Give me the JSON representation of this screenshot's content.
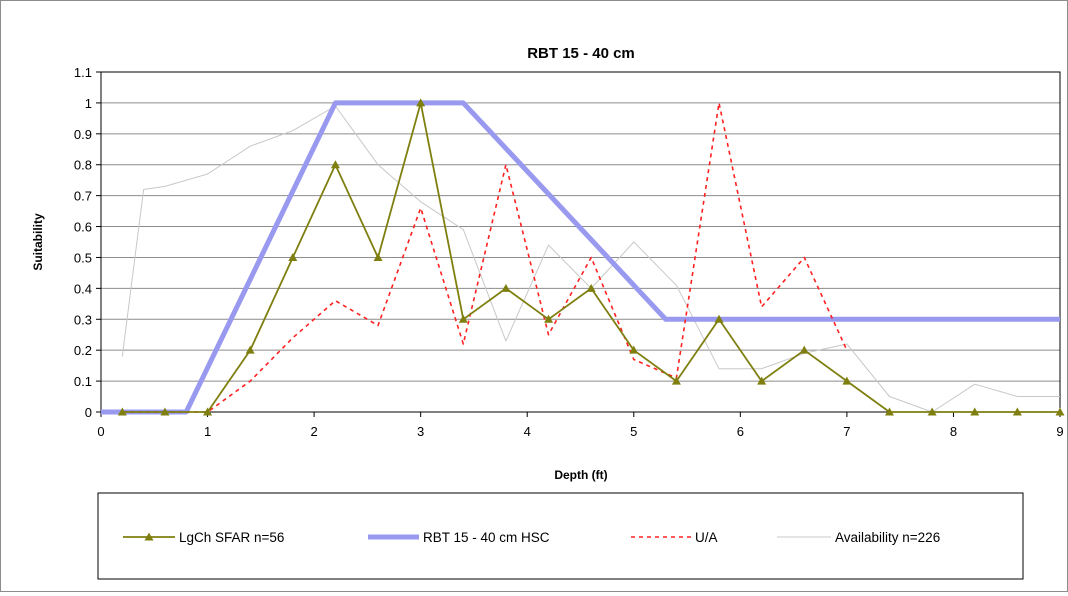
{
  "chart_data": {
    "type": "line",
    "title": "RBT 15 - 40 cm",
    "xlabel": "Depth (ft)",
    "ylabel": "Suitability",
    "xlim": [
      0,
      9
    ],
    "ylim": [
      0,
      1.1
    ],
    "xticks": [
      "0",
      "1",
      "2",
      "3",
      "4",
      "5",
      "6",
      "7",
      "8",
      "9"
    ],
    "yticks": [
      "0",
      "0.1",
      "0.2",
      "0.3",
      "0.4",
      "0.5",
      "0.6",
      "0.7",
      "0.8",
      "0.9",
      "1",
      "1.1"
    ],
    "grid": true,
    "legend_position": "bottom",
    "series": [
      {
        "name": "LgCh SFAR n=56",
        "color": "#7f7f10",
        "marker": "triangle",
        "style": "solid",
        "x": [
          0.2,
          0.6,
          1.0,
          1.4,
          1.8,
          2.2,
          2.6,
          3.0,
          3.4,
          3.8,
          4.2,
          4.6,
          5.0,
          5.4,
          5.8,
          6.2,
          6.6,
          7.0,
          7.4,
          7.8,
          8.2,
          8.6,
          9.0
        ],
        "values": [
          0,
          0,
          0,
          0.2,
          0.5,
          0.8,
          0.5,
          1.0,
          0.3,
          0.4,
          0.3,
          0.4,
          0.2,
          0.1,
          0.3,
          0.1,
          0.2,
          0.1,
          0,
          0,
          0,
          0,
          0
        ]
      },
      {
        "name": "RBT 15 - 40 cm HSC",
        "color": "#9999f0",
        "marker": "none",
        "style": "thick",
        "x": [
          0,
          0.8,
          2.2,
          3.4,
          5.3,
          9.0
        ],
        "values": [
          0,
          0,
          1.0,
          1.0,
          0.3,
          0.3
        ]
      },
      {
        "name": "U/A",
        "color": "#ff2020",
        "marker": "none",
        "style": "dashed",
        "x": [
          0.2,
          0.6,
          1.0,
          1.4,
          1.8,
          2.2,
          2.6,
          3.0,
          3.4,
          3.8,
          4.2,
          4.6,
          5.0,
          5.4,
          5.8,
          6.2,
          6.6,
          7.0
        ],
        "values": [
          0,
          0,
          0,
          0.1,
          0.24,
          0.36,
          0.28,
          0.66,
          0.22,
          0.8,
          0.25,
          0.5,
          0.17,
          0.11,
          1.0,
          0.34,
          0.5,
          0.2
        ]
      },
      {
        "name": "Availability  n=226",
        "color": "#c8c8c8",
        "marker": "none",
        "style": "thin",
        "x": [
          0.2,
          0.4,
          0.6,
          1.0,
          1.4,
          1.8,
          2.2,
          2.6,
          3.0,
          3.4,
          3.8,
          4.2,
          4.6,
          5.0,
          5.4,
          5.8,
          6.2,
          6.6,
          7.0,
          7.4,
          7.8,
          8.2,
          8.6,
          9.0
        ],
        "values": [
          0.18,
          0.72,
          0.73,
          0.77,
          0.86,
          0.91,
          0.99,
          0.8,
          0.68,
          0.59,
          0.23,
          0.54,
          0.4,
          0.55,
          0.41,
          0.14,
          0.14,
          0.19,
          0.22,
          0.05,
          0,
          0.09,
          0.05,
          0.05
        ]
      }
    ]
  }
}
